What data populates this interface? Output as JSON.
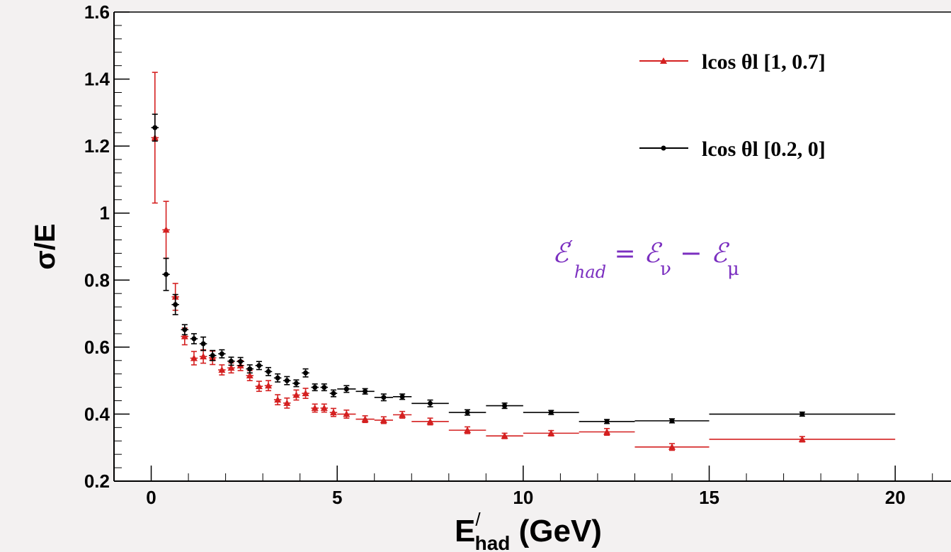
{
  "chart_data": {
    "type": "scatter",
    "title": "",
    "xlabel": {
      "main": "E",
      "prime": "/",
      "sub": "had",
      "unit": " (GeV)"
    },
    "ylabel": "σ/E",
    "xlim": [
      -1,
      21.5
    ],
    "ylim": [
      0.2,
      1.6
    ],
    "x_ticks": [
      0,
      5,
      10,
      15,
      20
    ],
    "x_tick_labels": [
      "0",
      "5",
      "10",
      "15",
      "20"
    ],
    "y_ticks": [
      0.2,
      0.4,
      0.6,
      0.8,
      1.0,
      1.2,
      1.4,
      1.6
    ],
    "y_tick_labels": [
      "0.2",
      "0.4",
      "0.6",
      "0.8",
      "1",
      "1.2",
      "1.4",
      "1.6"
    ],
    "grid": false,
    "legend_position": "top-right",
    "annotation": {
      "lhs": "ℰ",
      "lhs_prime": "′",
      "lhs_sub": "had",
      "eq": " = ",
      "nu": "ℰ",
      "nu_sub": "ν",
      "minus": " − ",
      "mu": "ℰ",
      "mu_sub": "μ"
    },
    "series": [
      {
        "name": "lcos θl [1, 0.7]",
        "color": "#d42020",
        "marker": "triangle",
        "points": [
          [
            0.1,
            1.225,
            0.1,
            0.195
          ],
          [
            0.4,
            0.95,
            0.1,
            0.085
          ],
          [
            0.65,
            0.75,
            0.1,
            0.04
          ],
          [
            0.9,
            0.632,
            0.1,
            0.025
          ],
          [
            1.15,
            0.567,
            0.1,
            0.02
          ],
          [
            1.4,
            0.572,
            0.1,
            0.02
          ],
          [
            1.65,
            0.568,
            0.1,
            0.02
          ],
          [
            1.9,
            0.532,
            0.1,
            0.015
          ],
          [
            2.15,
            0.538,
            0.1,
            0.015
          ],
          [
            2.4,
            0.545,
            0.1,
            0.015
          ],
          [
            2.65,
            0.515,
            0.1,
            0.015
          ],
          [
            2.9,
            0.483,
            0.1,
            0.015
          ],
          [
            3.15,
            0.485,
            0.1,
            0.015
          ],
          [
            3.4,
            0.443,
            0.1,
            0.015
          ],
          [
            3.65,
            0.433,
            0.1,
            0.015
          ],
          [
            3.9,
            0.457,
            0.1,
            0.015
          ],
          [
            4.15,
            0.462,
            0.1,
            0.015
          ],
          [
            4.4,
            0.418,
            0.1,
            0.012
          ],
          [
            4.65,
            0.418,
            0.1,
            0.012
          ],
          [
            4.9,
            0.405,
            0.1,
            0.012
          ],
          [
            5.25,
            0.4,
            0.25,
            0.012
          ],
          [
            5.75,
            0.385,
            0.25,
            0.01
          ],
          [
            6.25,
            0.382,
            0.25,
            0.01
          ],
          [
            6.75,
            0.398,
            0.25,
            0.01
          ],
          [
            7.5,
            0.378,
            0.5,
            0.01
          ],
          [
            8.5,
            0.352,
            0.5,
            0.01
          ],
          [
            9.5,
            0.335,
            0.5,
            0.008
          ],
          [
            10.75,
            0.343,
            0.75,
            0.008
          ],
          [
            12.25,
            0.347,
            0.75,
            0.01
          ],
          [
            14.0,
            0.302,
            1.0,
            0.01
          ],
          [
            17.5,
            0.325,
            2.5,
            0.008
          ]
        ]
      },
      {
        "name": "lcos θl [0.2, 0]",
        "color": "#000000",
        "marker": "circle",
        "points": [
          [
            0.1,
            1.255,
            0.1,
            0.04
          ],
          [
            0.4,
            0.817,
            0.1,
            0.048
          ],
          [
            0.65,
            0.727,
            0.1,
            0.03
          ],
          [
            0.9,
            0.652,
            0.1,
            0.015
          ],
          [
            1.15,
            0.625,
            0.1,
            0.015
          ],
          [
            1.4,
            0.61,
            0.1,
            0.02
          ],
          [
            1.65,
            0.575,
            0.1,
            0.015
          ],
          [
            1.9,
            0.58,
            0.1,
            0.012
          ],
          [
            2.15,
            0.558,
            0.1,
            0.012
          ],
          [
            2.4,
            0.557,
            0.1,
            0.012
          ],
          [
            2.65,
            0.535,
            0.1,
            0.012
          ],
          [
            2.9,
            0.545,
            0.1,
            0.012
          ],
          [
            3.15,
            0.527,
            0.1,
            0.012
          ],
          [
            3.4,
            0.508,
            0.1,
            0.012
          ],
          [
            3.65,
            0.5,
            0.1,
            0.012
          ],
          [
            3.9,
            0.492,
            0.1,
            0.01
          ],
          [
            4.15,
            0.523,
            0.1,
            0.012
          ],
          [
            4.4,
            0.48,
            0.1,
            0.01
          ],
          [
            4.65,
            0.48,
            0.1,
            0.01
          ],
          [
            4.9,
            0.462,
            0.1,
            0.01
          ],
          [
            5.25,
            0.475,
            0.25,
            0.01
          ],
          [
            5.75,
            0.468,
            0.25,
            0.008
          ],
          [
            6.25,
            0.45,
            0.25,
            0.01
          ],
          [
            6.75,
            0.452,
            0.25,
            0.008
          ],
          [
            7.5,
            0.432,
            0.5,
            0.01
          ],
          [
            8.5,
            0.405,
            0.5,
            0.008
          ],
          [
            9.5,
            0.425,
            0.5,
            0.008
          ],
          [
            10.75,
            0.405,
            0.75,
            0.006
          ],
          [
            12.25,
            0.378,
            0.75,
            0.006
          ],
          [
            14.0,
            0.38,
            1.0,
            0.006
          ],
          [
            17.5,
            0.4,
            2.5,
            0.006
          ]
        ]
      }
    ]
  }
}
